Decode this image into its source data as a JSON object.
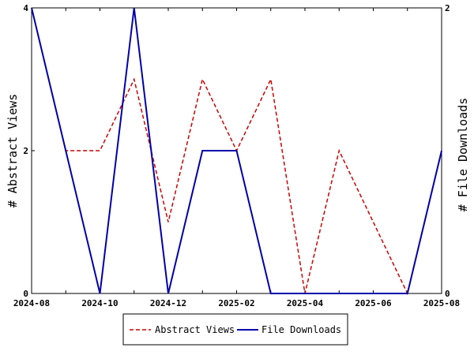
{
  "chart_data": {
    "type": "line",
    "x": [
      "2024-08",
      "2024-09",
      "2024-10",
      "2024-11",
      "2024-12",
      "2025-01",
      "2025-02",
      "2025-03",
      "2025-04",
      "2025-05",
      "2025-06",
      "2025-07",
      "2025-08"
    ],
    "x_tick_labels": [
      "2024-08",
      "2024-10",
      "2024-12",
      "2025-02",
      "2025-04",
      "2025-06",
      "2025-08"
    ],
    "y_left": {
      "label": "# Abstract Views",
      "range": [
        0,
        4
      ],
      "ticks": [
        "0",
        "2",
        "4"
      ]
    },
    "y_right": {
      "label": "# File Downloads",
      "range": [
        0,
        2
      ],
      "ticks": [
        "0",
        "2"
      ]
    },
    "series": [
      {
        "name": "Abstract Views",
        "axis": "left",
        "color": "#cc0000",
        "dash": "dashed",
        "values": [
          4,
          2,
          2,
          3,
          1,
          3,
          2,
          3,
          0,
          2,
          1,
          0,
          2
        ]
      },
      {
        "name": "File Downloads",
        "axis": "right",
        "color": "#0000aa",
        "dash": "solid",
        "values": [
          2,
          1,
          0,
          2,
          0,
          1,
          1,
          0,
          0,
          0,
          0,
          0,
          1
        ]
      }
    ],
    "legend": "bottom-center",
    "grid": false
  }
}
